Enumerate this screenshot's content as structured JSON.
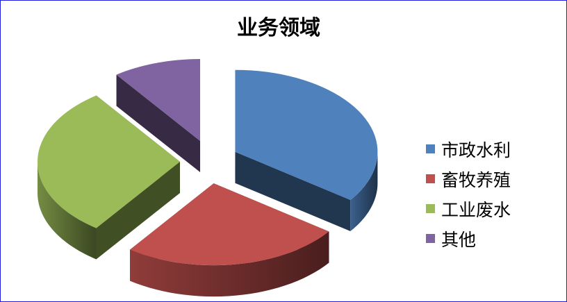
{
  "chart_data": {
    "type": "pie",
    "style": "3d-exploded",
    "title": "业务领域",
    "categories": [
      "市政水利",
      "畜牧养殖",
      "工业废水",
      "其他"
    ],
    "values": [
      35,
      25,
      30,
      10
    ],
    "colors": [
      "#4f81bd",
      "#c0504d",
      "#9bbb59",
      "#8064a2"
    ],
    "legend_position": "right"
  }
}
